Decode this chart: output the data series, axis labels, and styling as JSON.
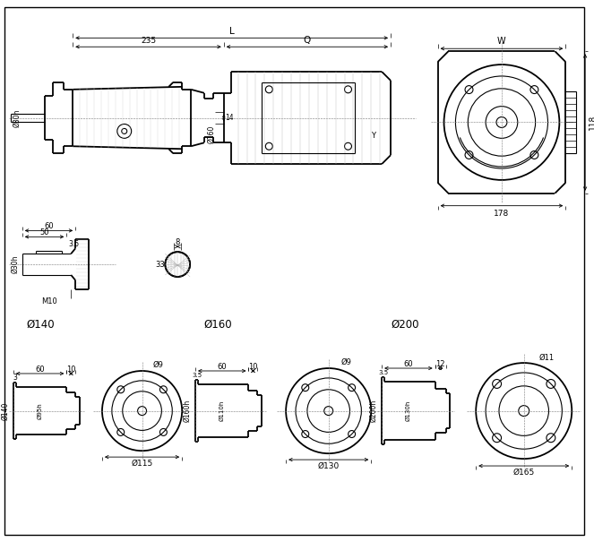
{
  "bg_color": "#ffffff",
  "line_color": "#000000",
  "dims": {
    "L": "L",
    "235": "235",
    "Q": "Q",
    "W": "W",
    "118": "118",
    "178": "178",
    "14": "14",
    "Y": "Y",
    "Phi160_side": "Ø160",
    "Phi30n": "Ø30h",
    "60": "60",
    "50": "50",
    "3_5": "3.5",
    "M10": "M10",
    "8": "8",
    "33": "33",
    "Phi140": "Ø140",
    "Phi160": "Ø160",
    "Phi200": "Ø200",
    "Phi9_140": "Ø9",
    "Phi115": "Ø115",
    "Phi9_160": "Ø9",
    "Phi130": "Ø130",
    "Phi11": "Ø11",
    "Phi165": "Ø165",
    "Phi95": "Ø95h",
    "Phi110": "Ø110h",
    "Phi130h": "Ø130h",
    "f140_60": "60",
    "f140_10": "10",
    "f140_3": "3",
    "f160_60": "60",
    "f160_10": "10",
    "f160_35": "3.5",
    "f200_60": "60",
    "f200_12": "12",
    "f200_35": "3.5"
  }
}
